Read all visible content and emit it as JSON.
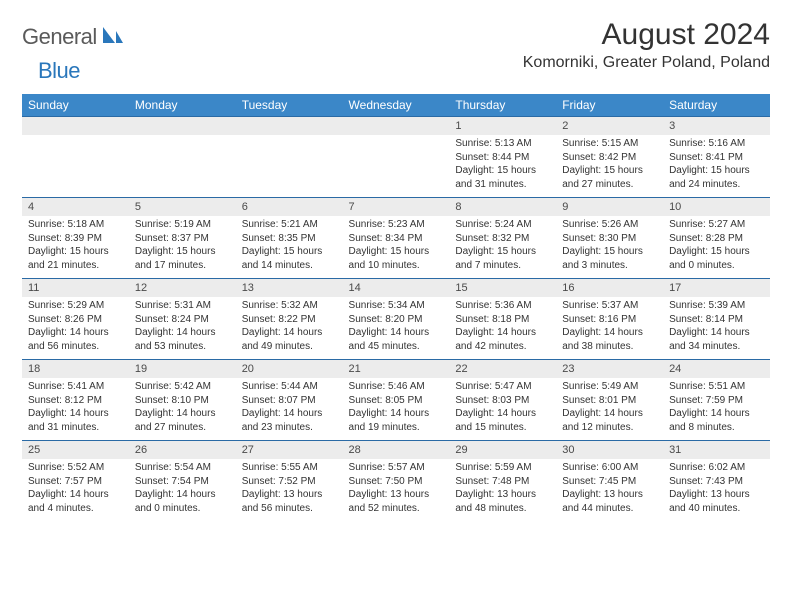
{
  "logo": {
    "word1": "General",
    "word2": "Blue"
  },
  "title": "August 2024",
  "location": "Komorniki, Greater Poland, Poland",
  "colors": {
    "header_bg": "#3b87c8",
    "header_text": "#ffffff",
    "daynum_bg": "#ececec",
    "rule": "#2a6aa5",
    "logo_gray": "#5a5a5a",
    "logo_blue": "#2a77bb"
  },
  "dow": [
    "Sunday",
    "Monday",
    "Tuesday",
    "Wednesday",
    "Thursday",
    "Friday",
    "Saturday"
  ],
  "weeks": [
    [
      null,
      null,
      null,
      null,
      {
        "n": "1",
        "sr": "5:13 AM",
        "ss": "8:44 PM",
        "dl": "15 hours and 31 minutes."
      },
      {
        "n": "2",
        "sr": "5:15 AM",
        "ss": "8:42 PM",
        "dl": "15 hours and 27 minutes."
      },
      {
        "n": "3",
        "sr": "5:16 AM",
        "ss": "8:41 PM",
        "dl": "15 hours and 24 minutes."
      }
    ],
    [
      {
        "n": "4",
        "sr": "5:18 AM",
        "ss": "8:39 PM",
        "dl": "15 hours and 21 minutes."
      },
      {
        "n": "5",
        "sr": "5:19 AM",
        "ss": "8:37 PM",
        "dl": "15 hours and 17 minutes."
      },
      {
        "n": "6",
        "sr": "5:21 AM",
        "ss": "8:35 PM",
        "dl": "15 hours and 14 minutes."
      },
      {
        "n": "7",
        "sr": "5:23 AM",
        "ss": "8:34 PM",
        "dl": "15 hours and 10 minutes."
      },
      {
        "n": "8",
        "sr": "5:24 AM",
        "ss": "8:32 PM",
        "dl": "15 hours and 7 minutes."
      },
      {
        "n": "9",
        "sr": "5:26 AM",
        "ss": "8:30 PM",
        "dl": "15 hours and 3 minutes."
      },
      {
        "n": "10",
        "sr": "5:27 AM",
        "ss": "8:28 PM",
        "dl": "15 hours and 0 minutes."
      }
    ],
    [
      {
        "n": "11",
        "sr": "5:29 AM",
        "ss": "8:26 PM",
        "dl": "14 hours and 56 minutes."
      },
      {
        "n": "12",
        "sr": "5:31 AM",
        "ss": "8:24 PM",
        "dl": "14 hours and 53 minutes."
      },
      {
        "n": "13",
        "sr": "5:32 AM",
        "ss": "8:22 PM",
        "dl": "14 hours and 49 minutes."
      },
      {
        "n": "14",
        "sr": "5:34 AM",
        "ss": "8:20 PM",
        "dl": "14 hours and 45 minutes."
      },
      {
        "n": "15",
        "sr": "5:36 AM",
        "ss": "8:18 PM",
        "dl": "14 hours and 42 minutes."
      },
      {
        "n": "16",
        "sr": "5:37 AM",
        "ss": "8:16 PM",
        "dl": "14 hours and 38 minutes."
      },
      {
        "n": "17",
        "sr": "5:39 AM",
        "ss": "8:14 PM",
        "dl": "14 hours and 34 minutes."
      }
    ],
    [
      {
        "n": "18",
        "sr": "5:41 AM",
        "ss": "8:12 PM",
        "dl": "14 hours and 31 minutes."
      },
      {
        "n": "19",
        "sr": "5:42 AM",
        "ss": "8:10 PM",
        "dl": "14 hours and 27 minutes."
      },
      {
        "n": "20",
        "sr": "5:44 AM",
        "ss": "8:07 PM",
        "dl": "14 hours and 23 minutes."
      },
      {
        "n": "21",
        "sr": "5:46 AM",
        "ss": "8:05 PM",
        "dl": "14 hours and 19 minutes."
      },
      {
        "n": "22",
        "sr": "5:47 AM",
        "ss": "8:03 PM",
        "dl": "14 hours and 15 minutes."
      },
      {
        "n": "23",
        "sr": "5:49 AM",
        "ss": "8:01 PM",
        "dl": "14 hours and 12 minutes."
      },
      {
        "n": "24",
        "sr": "5:51 AM",
        "ss": "7:59 PM",
        "dl": "14 hours and 8 minutes."
      }
    ],
    [
      {
        "n": "25",
        "sr": "5:52 AM",
        "ss": "7:57 PM",
        "dl": "14 hours and 4 minutes."
      },
      {
        "n": "26",
        "sr": "5:54 AM",
        "ss": "7:54 PM",
        "dl": "14 hours and 0 minutes."
      },
      {
        "n": "27",
        "sr": "5:55 AM",
        "ss": "7:52 PM",
        "dl": "13 hours and 56 minutes."
      },
      {
        "n": "28",
        "sr": "5:57 AM",
        "ss": "7:50 PM",
        "dl": "13 hours and 52 minutes."
      },
      {
        "n": "29",
        "sr": "5:59 AM",
        "ss": "7:48 PM",
        "dl": "13 hours and 48 minutes."
      },
      {
        "n": "30",
        "sr": "6:00 AM",
        "ss": "7:45 PM",
        "dl": "13 hours and 44 minutes."
      },
      {
        "n": "31",
        "sr": "6:02 AM",
        "ss": "7:43 PM",
        "dl": "13 hours and 40 minutes."
      }
    ]
  ],
  "labels": {
    "sunrise": "Sunrise: ",
    "sunset": "Sunset: ",
    "daylight": "Daylight: "
  }
}
